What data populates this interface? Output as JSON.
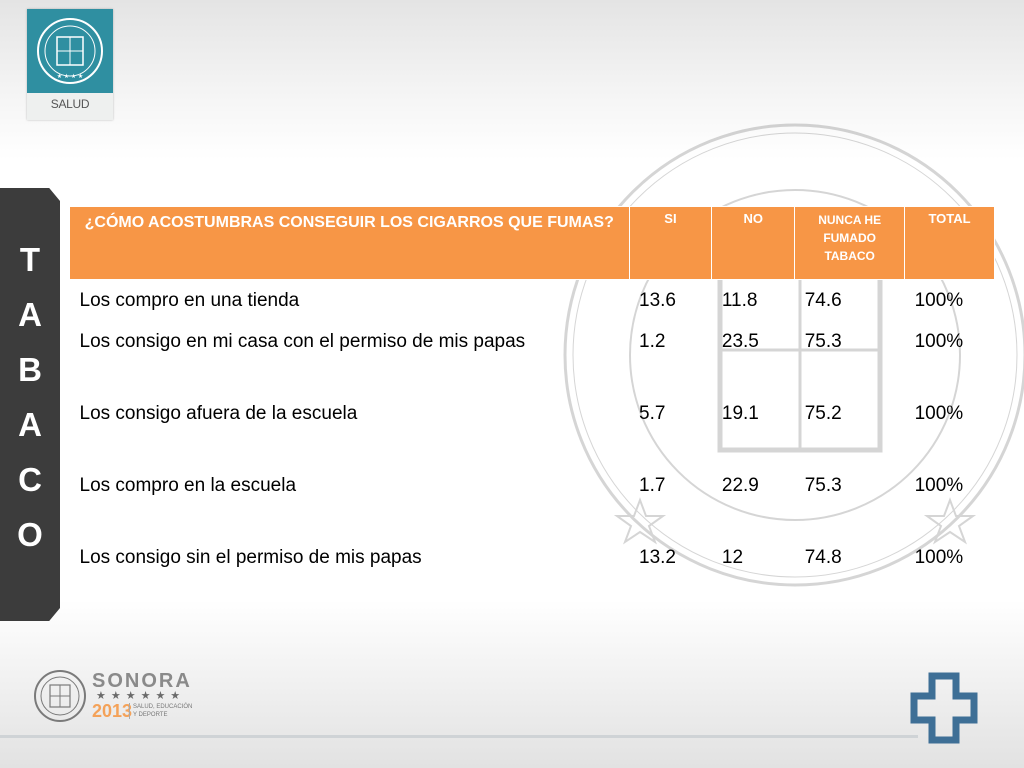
{
  "header": {
    "badge_label": "SALUD"
  },
  "side_tab": {
    "letters": [
      "T",
      "A",
      "B",
      "A",
      "C",
      "O"
    ]
  },
  "table": {
    "headers": {
      "question": "¿CÓMO ACOSTUMBRAS CONSEGUIR LOS CIGARROS QUE FUMAS?",
      "si": "SI",
      "no": "NO",
      "nunca": "NUNCA HE FUMADO TABACO",
      "total": "TOTAL"
    },
    "rows": [
      {
        "label": "Los compro en una tienda",
        "si": "13.6",
        "no": "11.8",
        "nunca": "74.6",
        "total": "100%"
      },
      {
        "label": "Los consigo en mi casa con el permiso de mis papas",
        "si": "1.2",
        "no": "23.5",
        "nunca": "75.3",
        "total": "100%"
      },
      {
        "label": "Los consigo afuera de la escuela",
        "si": "5.7",
        "no": "19.1",
        "nunca": "75.2",
        "total": "100%"
      },
      {
        "label": "Los compro en la escuela",
        "si": "1.7",
        "no": "22.9",
        "nunca": "75.3",
        "total": "100%"
      },
      {
        "label": "Los consigo sin el permiso de mis papas",
        "si": "13.2",
        "no": "12",
        "nunca": "74.8",
        "total": "100%"
      }
    ]
  },
  "footer": {
    "brand": "SONORA",
    "stars": "★★★★★★",
    "year": "2013",
    "tagline_1": "SALUD, EDUCACIÓN",
    "tagline_2": "Y DEPORTE"
  },
  "colors": {
    "header_orange": "#f79646",
    "badge_teal": "#2f8fa1",
    "side_tab": "#3c3c3c",
    "cross_blue": "#3e6f96"
  }
}
